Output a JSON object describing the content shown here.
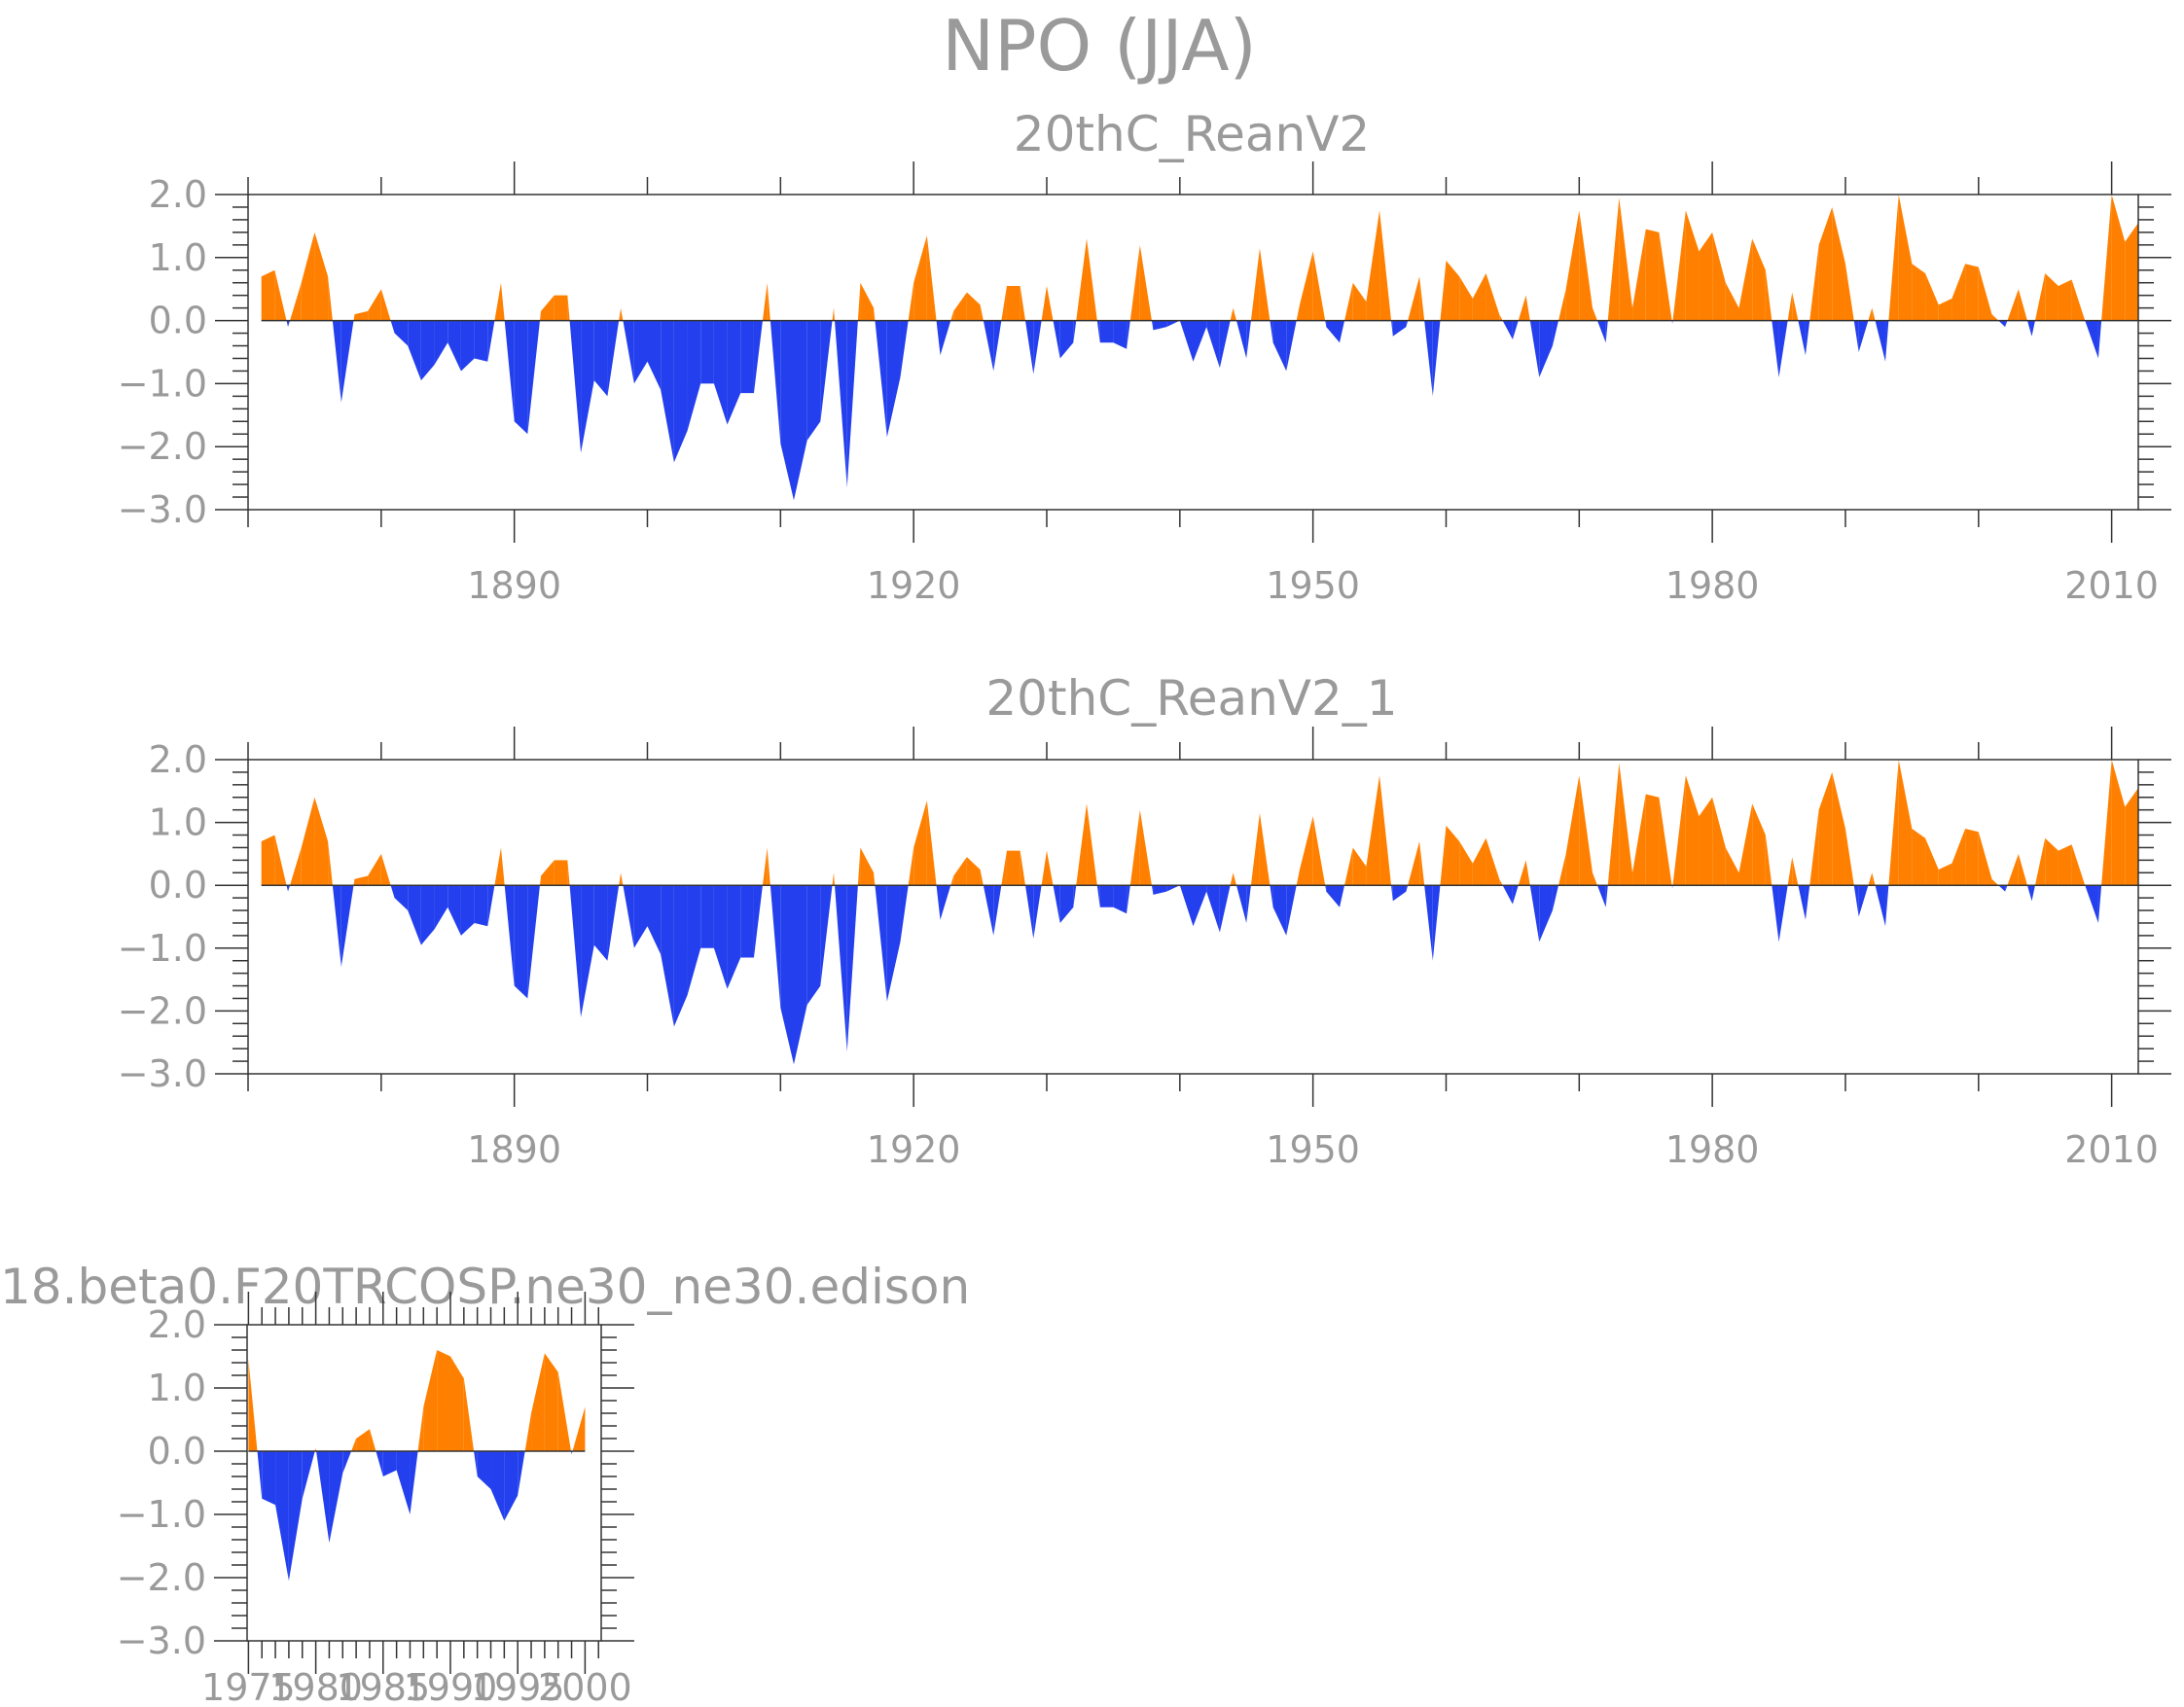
{
  "title": "NPO (JJA)",
  "colors": {
    "positive": "#ff8000",
    "negative": "#2440ee",
    "axis": "#333333",
    "text": "#9a9a9a"
  },
  "chart_data": [
    {
      "type": "area",
      "title": "20thC_ReanV2",
      "x_tick_labels": [
        "1890",
        "1920",
        "1950",
        "1980",
        "2010"
      ],
      "y_tick_labels": [
        "2.0",
        "1.0",
        "0.0",
        "−1.0",
        "−2.0",
        "−3.0"
      ],
      "xlim": [
        1870,
        2012
      ],
      "ylim": [
        -3,
        2
      ],
      "grid": false,
      "x_start": 1871,
      "values": [
        0.7,
        0.8,
        -0.1,
        0.6,
        1.4,
        0.7,
        -1.3,
        0.1,
        0.15,
        0.5,
        -0.2,
        -0.4,
        -0.95,
        -0.7,
        -0.35,
        -0.8,
        -0.6,
        -0.65,
        0.6,
        -1.6,
        -1.8,
        0.15,
        0.4,
        0.4,
        -2.1,
        -0.95,
        -1.2,
        0.2,
        -1.0,
        -0.65,
        -1.1,
        -2.25,
        -1.75,
        -1.0,
        -1.0,
        -1.65,
        -1.15,
        -1.15,
        0.6,
        -1.95,
        -2.85,
        -1.9,
        -1.6,
        0.2,
        -2.65,
        0.6,
        0.2,
        -1.85,
        -0.9,
        0.6,
        1.35,
        -0.55,
        0.15,
        0.45,
        0.25,
        -0.8,
        0.55,
        0.55,
        -0.85,
        0.55,
        -0.6,
        -0.35,
        1.3,
        -0.35,
        -0.35,
        -0.45,
        1.2,
        -0.15,
        -0.1,
        0.0,
        -0.65,
        -0.1,
        -0.75,
        0.2,
        -0.6,
        1.15,
        -0.35,
        -0.8,
        0.25,
        1.1,
        -0.1,
        -0.35,
        0.6,
        0.3,
        1.75,
        -0.25,
        -0.1,
        0.7,
        -1.2,
        0.95,
        0.7,
        0.35,
        0.75,
        0.1,
        -0.3,
        0.4,
        -0.9,
        -0.4,
        0.5,
        1.75,
        0.2,
        -0.35,
        1.95,
        0.2,
        1.45,
        1.4,
        -0.05,
        1.75,
        1.1,
        1.4,
        0.6,
        0.2,
        1.3,
        0.8,
        -0.9,
        0.45,
        -0.55,
        1.2,
        1.8,
        0.9,
        -0.5,
        0.2,
        -0.65,
        2.0,
        0.9,
        0.75,
        0.25,
        0.35,
        0.9,
        0.85,
        0.1,
        -0.1,
        0.5,
        -0.25,
        0.75,
        0.55,
        0.65,
        0.0,
        -0.6,
        2.0,
        1.25,
        1.55
      ]
    },
    {
      "type": "area",
      "title": "20thC_ReanV2_1",
      "x_tick_labels": [
        "1890",
        "1920",
        "1950",
        "1980",
        "2010"
      ],
      "y_tick_labels": [
        "2.0",
        "1.0",
        "0.0",
        "−1.0",
        "−2.0",
        "−3.0"
      ],
      "xlim": [
        1870,
        2012
      ],
      "ylim": [
        -3,
        2
      ],
      "grid": false,
      "x_start": 1871,
      "values": [
        0.7,
        0.8,
        -0.1,
        0.6,
        1.4,
        0.7,
        -1.3,
        0.1,
        0.15,
        0.5,
        -0.2,
        -0.4,
        -0.95,
        -0.7,
        -0.35,
        -0.8,
        -0.6,
        -0.65,
        0.6,
        -1.6,
        -1.8,
        0.15,
        0.4,
        0.4,
        -2.1,
        -0.95,
        -1.2,
        0.2,
        -1.0,
        -0.65,
        -1.1,
        -2.25,
        -1.75,
        -1.0,
        -1.0,
        -1.65,
        -1.15,
        -1.15,
        0.6,
        -1.95,
        -2.85,
        -1.9,
        -1.6,
        0.2,
        -2.65,
        0.6,
        0.2,
        -1.85,
        -0.9,
        0.6,
        1.35,
        -0.55,
        0.15,
        0.45,
        0.25,
        -0.8,
        0.55,
        0.55,
        -0.85,
        0.55,
        -0.6,
        -0.35,
        1.3,
        -0.35,
        -0.35,
        -0.45,
        1.2,
        -0.15,
        -0.1,
        0.0,
        -0.65,
        -0.1,
        -0.75,
        0.2,
        -0.6,
        1.15,
        -0.35,
        -0.8,
        0.25,
        1.1,
        -0.1,
        -0.35,
        0.6,
        0.3,
        1.75,
        -0.25,
        -0.1,
        0.7,
        -1.2,
        0.95,
        0.7,
        0.35,
        0.75,
        0.1,
        -0.3,
        0.4,
        -0.9,
        -0.4,
        0.5,
        1.75,
        0.2,
        -0.35,
        1.95,
        0.2,
        1.45,
        1.4,
        -0.05,
        1.75,
        1.1,
        1.4,
        0.6,
        0.2,
        1.3,
        0.8,
        -0.9,
        0.45,
        -0.55,
        1.2,
        1.8,
        0.9,
        -0.5,
        0.2,
        -0.65,
        2.0,
        0.9,
        0.75,
        0.25,
        0.35,
        0.9,
        0.85,
        0.1,
        -0.1,
        0.5,
        -0.25,
        0.75,
        0.55,
        0.65,
        0.0,
        -0.6,
        2.0,
        1.25,
        1.55
      ]
    },
    {
      "type": "area",
      "title": "18.beta0.F20TRCOSP.ne30_ne30.edison",
      "x_tick_labels": [
        "1975",
        "1980",
        "1985",
        "1990",
        "1995",
        "2000"
      ],
      "y_tick_labels": [
        "2.0",
        "1.0",
        "0.0",
        "−1.0",
        "−2.0",
        "−3.0"
      ],
      "xlim": [
        1974.9,
        2001.2
      ],
      "ylim": [
        -3,
        2
      ],
      "grid": false,
      "x_start": 1975,
      "values": [
        1.45,
        -0.75,
        -0.85,
        -2.05,
        -0.75,
        0.05,
        -1.45,
        -0.35,
        0.2,
        0.35,
        -0.4,
        -0.3,
        -1.0,
        0.7,
        1.6,
        1.5,
        1.15,
        -0.4,
        -0.6,
        -1.1,
        -0.7,
        0.6,
        1.55,
        1.25,
        -0.05,
        0.7
      ]
    }
  ]
}
